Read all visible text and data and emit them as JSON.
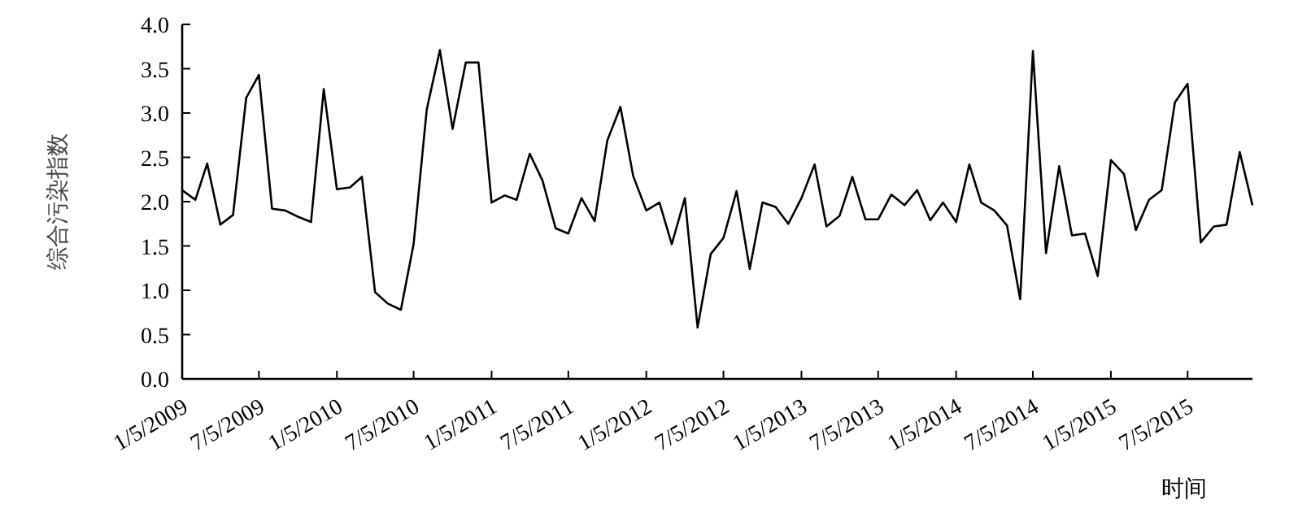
{
  "chart_data": {
    "type": "line",
    "xlabel": "时间",
    "ylabel": "综合污染指数",
    "x": [
      "2009-01-05",
      "2009-02-05",
      "2009-03-05",
      "2009-04-05",
      "2009-05-05",
      "2009-06-05",
      "2009-07-05",
      "2009-08-05",
      "2009-09-05",
      "2009-10-05",
      "2009-11-05",
      "2009-12-05",
      "2010-01-05",
      "2010-02-05",
      "2010-03-05",
      "2010-04-05",
      "2010-05-05",
      "2010-06-05",
      "2010-07-05",
      "2010-08-05",
      "2010-09-05",
      "2010-10-05",
      "2010-11-05",
      "2010-12-05",
      "2011-01-05",
      "2011-02-05",
      "2011-03-05",
      "2011-04-05",
      "2011-05-05",
      "2011-06-05",
      "2011-07-05",
      "2011-08-05",
      "2011-09-05",
      "2011-10-05",
      "2011-11-05",
      "2011-12-05",
      "2012-01-05",
      "2012-02-05",
      "2012-03-05",
      "2012-04-05",
      "2012-05-05",
      "2012-06-05",
      "2012-07-05",
      "2012-08-05",
      "2012-09-05",
      "2012-10-05",
      "2012-11-05",
      "2012-12-05",
      "2013-01-05",
      "2013-02-05",
      "2013-03-05",
      "2013-04-05",
      "2013-05-05",
      "2013-06-05",
      "2013-07-05",
      "2013-08-05",
      "2013-09-05",
      "2013-10-05",
      "2013-11-05",
      "2013-12-05",
      "2014-01-05",
      "2014-02-05",
      "2014-03-05",
      "2014-04-05",
      "2014-05-05",
      "2014-06-05",
      "2014-07-05",
      "2014-08-05",
      "2014-09-05",
      "2014-10-05",
      "2014-11-05",
      "2014-12-05",
      "2015-01-05",
      "2015-02-05",
      "2015-03-05",
      "2015-04-05",
      "2015-05-05",
      "2015-06-05",
      "2015-07-05",
      "2015-08-05",
      "2015-09-05",
      "2015-10-05",
      "2015-11-05",
      "2015-12-05"
    ],
    "series": [
      {
        "color": "#000000",
        "values": [
          2.13,
          2.02,
          2.43,
          1.74,
          1.85,
          3.17,
          3.43,
          1.92,
          1.9,
          1.83,
          1.77,
          3.27,
          2.14,
          2.16,
          2.28,
          0.98,
          0.85,
          0.78,
          1.52,
          3.04,
          3.71,
          2.82,
          3.57,
          3.57,
          1.99,
          2.07,
          2.02,
          2.54,
          2.24,
          1.7,
          1.64,
          2.04,
          1.78,
          2.69,
          3.07,
          2.29,
          1.9,
          1.99,
          1.52,
          2.04,
          0.58,
          1.41,
          1.59,
          2.12,
          1.24,
          1.99,
          1.94,
          1.75,
          2.04,
          2.42,
          1.72,
          1.84,
          2.28,
          1.8,
          1.8,
          2.08,
          1.96,
          2.13,
          1.79,
          1.99,
          1.77,
          2.42,
          1.99,
          1.9,
          1.73,
          0.9,
          3.7,
          1.42,
          2.4,
          1.62,
          1.64,
          1.16,
          2.47,
          2.31,
          1.68,
          2.02,
          2.13,
          3.12,
          3.33,
          1.54,
          1.72,
          1.74,
          2.56,
          1.96
        ]
      }
    ],
    "xlim": [
      "2009-01-05",
      "2015-12-05"
    ],
    "xticks": [
      {
        "value": "2009-01-05",
        "label": "1/5/2009"
      },
      {
        "value": "2009-07-05",
        "label": "7/5/2009"
      },
      {
        "value": "2010-01-05",
        "label": "1/5/2010"
      },
      {
        "value": "2010-07-05",
        "label": "7/5/2010"
      },
      {
        "value": "2011-01-05",
        "label": "1/5/2011"
      },
      {
        "value": "2011-07-05",
        "label": "7/5/2011"
      },
      {
        "value": "2012-01-05",
        "label": "1/5/2012"
      },
      {
        "value": "2012-07-05",
        "label": "7/5/2012"
      },
      {
        "value": "2013-01-05",
        "label": "1/5/2013"
      },
      {
        "value": "2013-07-05",
        "label": "7/5/2013"
      },
      {
        "value": "2014-01-05",
        "label": "1/5/2014"
      },
      {
        "value": "2014-07-05",
        "label": "7/5/2014"
      },
      {
        "value": "2015-01-05",
        "label": "1/5/2015"
      },
      {
        "value": "2015-07-05",
        "label": "7/5/2015"
      }
    ],
    "ylim": [
      0,
      4
    ],
    "yticks": [
      {
        "value": 0,
        "label": "0.0"
      },
      {
        "value": 0.5,
        "label": "0.5"
      },
      {
        "value": 1,
        "label": "1.0"
      },
      {
        "value": 1.5,
        "label": "1.5"
      },
      {
        "value": 2,
        "label": "2.0"
      },
      {
        "value": 2.5,
        "label": "2.5"
      },
      {
        "value": 3,
        "label": "3.0"
      },
      {
        "value": 3.5,
        "label": "3.5"
      },
      {
        "value": 4,
        "label": "4.0"
      }
    ],
    "grid": false,
    "marker": "none",
    "line_style": "solid"
  }
}
